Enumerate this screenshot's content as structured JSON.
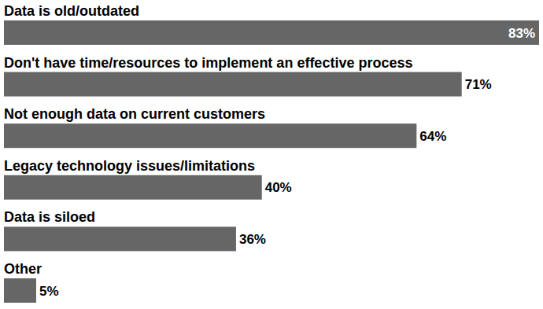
{
  "chart_data": {
    "type": "bar",
    "orientation": "horizontal",
    "categories": [
      "Data is old/outdated",
      "Don't have time/resources to implement an effective process",
      "Not enough data on current customers",
      "Legacy technology issues/limitations",
      "Data is siloed",
      "Other"
    ],
    "values": [
      83,
      71,
      64,
      40,
      36,
      5
    ],
    "value_labels": [
      "83%",
      "71%",
      "64%",
      "40%",
      "36%",
      "5%"
    ],
    "color": "#666666",
    "xlim": [
      0,
      83
    ],
    "data_labels": true,
    "tick_labels": false,
    "grid": false
  }
}
